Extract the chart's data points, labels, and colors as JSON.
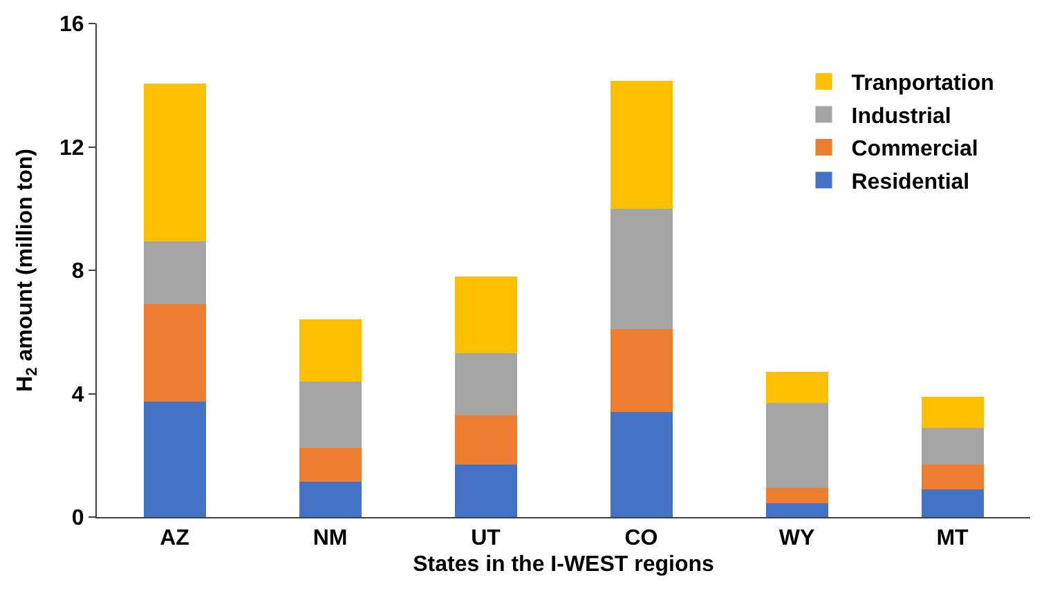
{
  "chart_data": {
    "type": "bar",
    "stacked": true,
    "xlabel": "States in the I-WEST regions",
    "ylabel": "H$_{2}$ amount (million ton)",
    "categories": [
      "AZ",
      "NM",
      "UT",
      "CO",
      "WY",
      "MT"
    ],
    "series": [
      {
        "name": "Residential",
        "color": "#4472c4",
        "values": [
          3.75,
          1.15,
          1.7,
          3.4,
          0.45,
          0.9
        ]
      },
      {
        "name": "Commercial",
        "color": "#ed7d31",
        "values": [
          3.15,
          1.1,
          1.6,
          2.7,
          0.5,
          0.8
        ]
      },
      {
        "name": "Industrial",
        "color": "#a5a5a5",
        "values": [
          2.05,
          2.15,
          2.0,
          3.9,
          2.75,
          1.2
        ]
      },
      {
        "name": "Tranportation",
        "color": "#ffc000",
        "values": [
          5.1,
          2.0,
          2.5,
          4.15,
          1.0,
          1.0
        ]
      }
    ],
    "ylim": [
      0,
      16
    ],
    "yticks": [
      0,
      4,
      8,
      12,
      16
    ],
    "legend": "top right"
  }
}
